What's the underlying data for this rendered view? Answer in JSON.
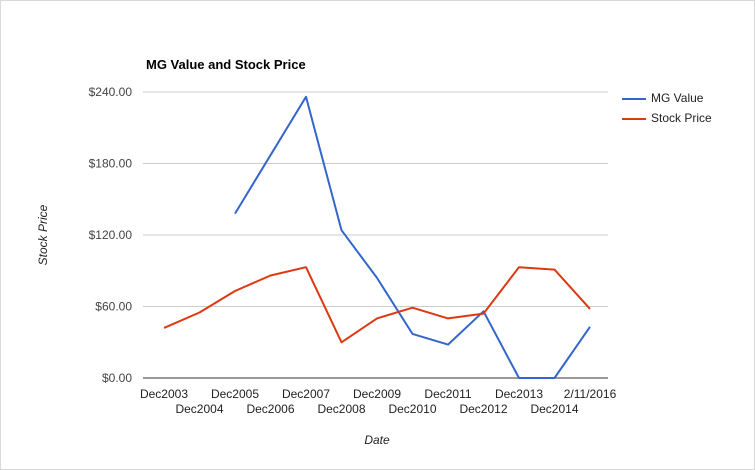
{
  "chart_data": {
    "type": "line",
    "title": "MG Value and Stock Price",
    "xlabel": "Date",
    "ylabel": "Stock Price",
    "categories": [
      "Dec2003",
      "Dec2004",
      "Dec2005",
      "Dec2006",
      "Dec2007",
      "Dec2008",
      "Dec2009",
      "Dec2010",
      "Dec2011",
      "Dec2012",
      "Dec2013",
      "Dec2014",
      "2/11/2016"
    ],
    "y_ticks": [
      "$0.00",
      "$60.00",
      "$120.00",
      "$180.00",
      "$240.00"
    ],
    "ylim": [
      0,
      240
    ],
    "grid": true,
    "legend_position": "right",
    "series": [
      {
        "name": "MG Value",
        "color": "#3366cc",
        "values": [
          null,
          null,
          138,
          187,
          236,
          124,
          84,
          37,
          28,
          56,
          0,
          0,
          43
        ]
      },
      {
        "name": "Stock Price",
        "color": "#dc3912",
        "values": [
          42,
          55,
          73,
          86,
          93,
          30,
          50,
          59,
          50,
          54,
          93,
          91,
          58
        ]
      }
    ]
  }
}
